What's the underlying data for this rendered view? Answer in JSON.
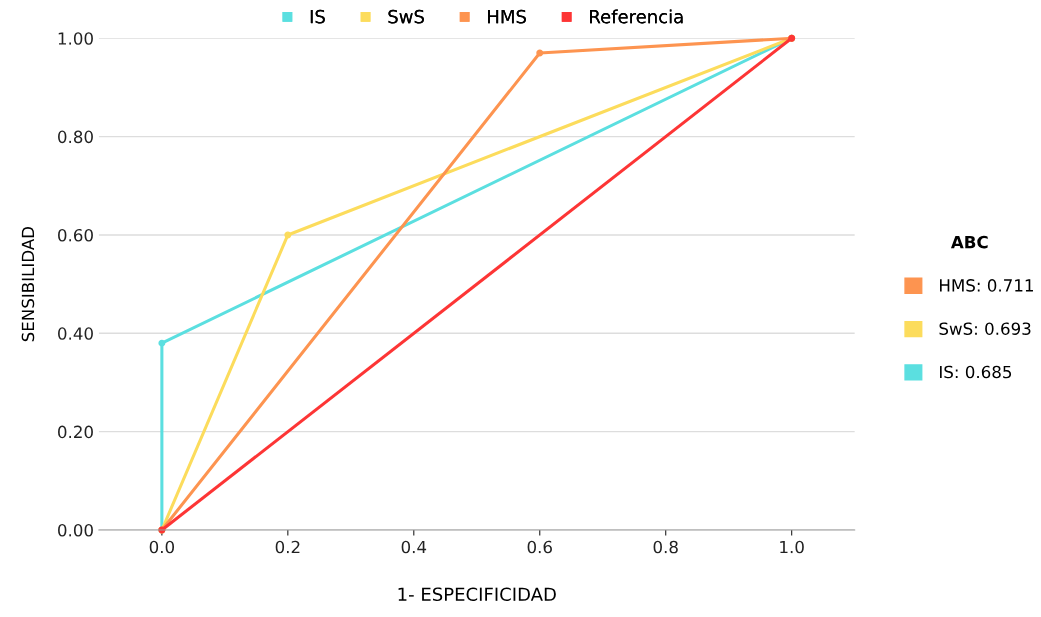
{
  "chart_data": {
    "type": "line",
    "xlabel": "1- ESPECIFICIDAD",
    "ylabel": "SENSIBILIDAD",
    "legend_title": "ABC",
    "annotations": [
      "HMS: 0.711",
      "SwS: 0.693",
      "IS: 0.685"
    ],
    "series": [
      {
        "name": "IS",
        "color": "#5bdfe0",
        "x": [
          0,
          0,
          1
        ],
        "values": [
          0,
          0.38,
          1
        ]
      },
      {
        "name": "SwS",
        "color": "#fcdc5c",
        "x": [
          0,
          0.2,
          1
        ],
        "values": [
          0,
          0.6,
          1
        ]
      },
      {
        "name": "HMS",
        "color": "#fd9450",
        "x": [
          0,
          0.6,
          1
        ],
        "values": [
          0,
          0.97,
          1
        ]
      },
      {
        "name": "Referencia",
        "color": "#fd3535",
        "x": [
          0,
          1
        ],
        "values": [
          0,
          1
        ]
      }
    ],
    "xlim": [
      -0.1,
      1.1
    ],
    "ylim": [
      0,
      1.0
    ],
    "xticks": [
      {
        "value": 0,
        "label": "0.0"
      },
      {
        "value": 0.2,
        "label": "0.2"
      },
      {
        "value": 0.4,
        "label": "0.4"
      },
      {
        "value": 0.6,
        "label": "0.6"
      },
      {
        "value": 0.8,
        "label": "0.8"
      },
      {
        "value": 1,
        "label": "1.0"
      }
    ],
    "yticks": [
      {
        "value": 0,
        "label": "0.00"
      },
      {
        "value": 0.2,
        "label": "0.20"
      },
      {
        "value": 0.4,
        "label": "0.40"
      },
      {
        "value": 0.6,
        "label": "0.60"
      },
      {
        "value": 0.8,
        "label": "0.80"
      },
      {
        "value": 1,
        "label": "1.00"
      }
    ],
    "grid": "y",
    "legend": "top",
    "marker": "circle",
    "line_style": "solid"
  }
}
